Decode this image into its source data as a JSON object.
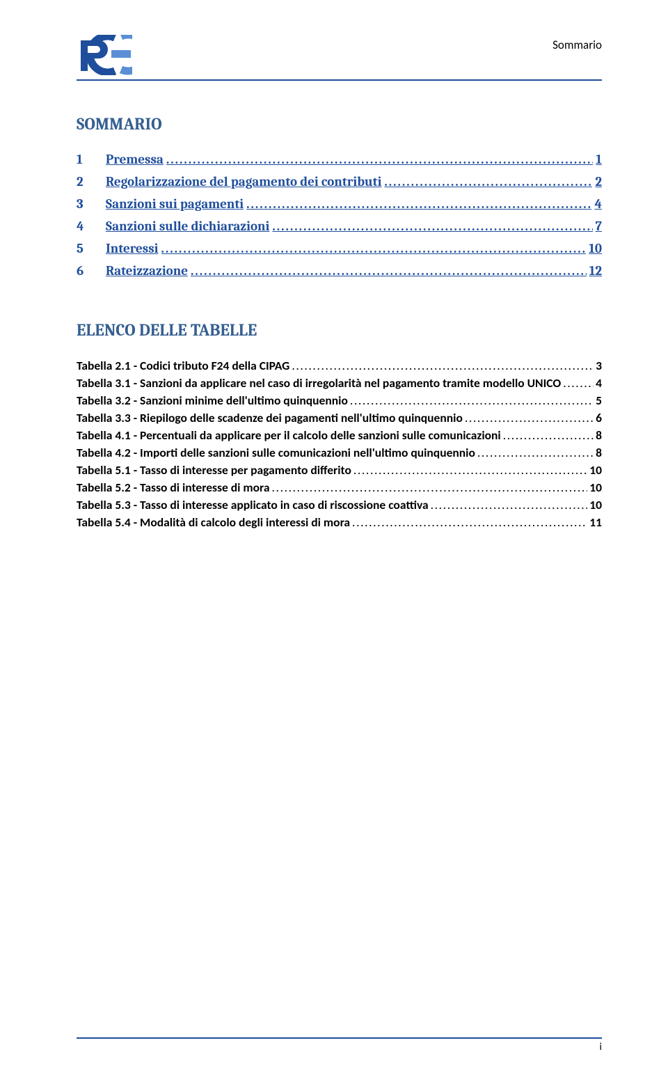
{
  "colors": {
    "accent": "#1f4e9c",
    "heading": "#365f91",
    "text": "#000000",
    "logo_light": "#5a8fd6",
    "logo_dark": "#1f4e9c"
  },
  "header": {
    "label": "Sommario"
  },
  "sections": {
    "sommario_title": "SOMMARIO",
    "elenco_title": "ELENCO DELLE TABELLE"
  },
  "toc_main": [
    {
      "num": "1",
      "title": "Premessa",
      "page": "1"
    },
    {
      "num": "2",
      "title": "Regolarizzazione del pagamento dei contributi",
      "page": "2"
    },
    {
      "num": "3",
      "title": "Sanzioni sui pagamenti",
      "page": "4"
    },
    {
      "num": "4",
      "title": "Sanzioni sulle dichiarazioni",
      "page": "7"
    },
    {
      "num": "5",
      "title": "Interessi",
      "page": "10"
    },
    {
      "num": "6",
      "title": "Rateizzazione",
      "page": "12"
    }
  ],
  "toc_tables": [
    {
      "title": "Tabella 2.1 - Codici tributo F24 della CIPAG",
      "page": "3"
    },
    {
      "title": "Tabella 3.1 - Sanzioni da applicare nel caso di irregolarità nel pagamento tramite modello UNICO",
      "page": "4"
    },
    {
      "title": "Tabella 3.2 - Sanzioni minime dell'ultimo quinquennio",
      "page": "5"
    },
    {
      "title": "Tabella 3.3 - Riepilogo delle scadenze dei pagamenti nell'ultimo quinquennio",
      "page": "6"
    },
    {
      "title": "Tabella 4.1 - Percentuali da applicare per il calcolo delle sanzioni sulle comunicazioni",
      "page": "8"
    },
    {
      "title": "Tabella 4.2 - Importi delle sanzioni sulle comunicazioni nell'ultimo quinquennio",
      "page": "8"
    },
    {
      "title": "Tabella 5.1 - Tasso di interesse per pagamento differito",
      "page": "10"
    },
    {
      "title": "Tabella 5.2 - Tasso di interesse di mora",
      "page": "10"
    },
    {
      "title": "Tabella 5.3 - Tasso di interesse applicato in caso di riscossione coattiva",
      "page": "10"
    },
    {
      "title": "Tabella 5.4 - Modalità di calcolo degli interessi di mora",
      "page": "11"
    }
  ],
  "footer": {
    "page_number": "i"
  },
  "leader_dots": "........................................................................................................................................................................................................................"
}
